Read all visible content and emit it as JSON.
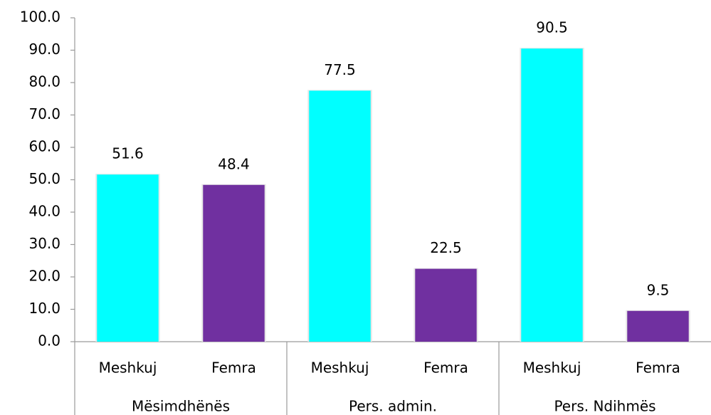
{
  "chart_data": {
    "type": "bar",
    "groups": [
      "Mësimdhënës",
      "Pers. admin.",
      "Pers. Ndihmës"
    ],
    "categories": [
      "Meshkuj",
      "Femra",
      "Meshkuj",
      "Femra",
      "Meshkuj",
      "Femra"
    ],
    "values": [
      51.6,
      48.4,
      77.5,
      22.5,
      90.5,
      9.5
    ],
    "colors": [
      "#00ffff",
      "#7030a0",
      "#00ffff",
      "#7030a0",
      "#00ffff",
      "#7030a0"
    ],
    "ylim": [
      0,
      100
    ],
    "yticks": [
      {
        "value": 0,
        "label": "0.0"
      },
      {
        "value": 10,
        "label": "10.0"
      },
      {
        "value": 20,
        "label": "20.0"
      },
      {
        "value": 30,
        "label": "30.0"
      },
      {
        "value": 40,
        "label": "40.0"
      },
      {
        "value": 50,
        "label": "50.0"
      },
      {
        "value": 60,
        "label": "60.0"
      },
      {
        "value": 70,
        "label": "70.0"
      },
      {
        "value": 80,
        "label": "80.0"
      },
      {
        "value": 90,
        "label": "90.0"
      },
      {
        "value": 100,
        "label": "100.0"
      }
    ],
    "grid": false
  }
}
